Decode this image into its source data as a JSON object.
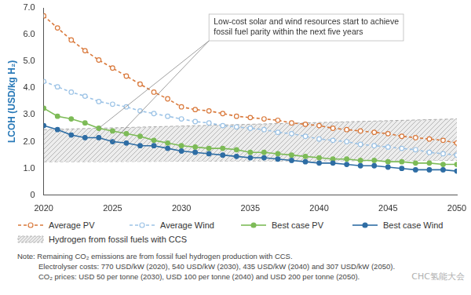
{
  "chart_data": {
    "type": "line",
    "y_label": "LCOH (USD/kg H₂)",
    "x": [
      2020,
      2021,
      2022,
      2023,
      2024,
      2025,
      2026,
      2027,
      2028,
      2029,
      2030,
      2031,
      2032,
      2033,
      2034,
      2035,
      2036,
      2037,
      2038,
      2039,
      2040,
      2041,
      2042,
      2043,
      2044,
      2045,
      2046,
      2047,
      2048,
      2049,
      2050
    ],
    "series": [
      {
        "name": "Average PV",
        "color": "#d9783a",
        "line_style": "dashed",
        "marker": "open_circle",
        "values": [
          6.7,
          6.25,
          5.8,
          5.4,
          5.05,
          4.75,
          4.45,
          4.15,
          3.85,
          3.6,
          3.3,
          3.2,
          3.15,
          3.05,
          2.95,
          2.9,
          2.85,
          2.8,
          2.7,
          2.65,
          2.6,
          2.5,
          2.45,
          2.4,
          2.35,
          2.3,
          2.2,
          2.15,
          2.1,
          2.05,
          1.95
        ]
      },
      {
        "name": "Average Wind",
        "color": "#9cc3e6",
        "line_style": "dashed",
        "marker": "open_circle",
        "values": [
          4.25,
          4.05,
          3.85,
          3.7,
          3.5,
          3.4,
          3.3,
          3.15,
          3.05,
          2.95,
          2.85,
          2.75,
          2.7,
          2.6,
          2.55,
          2.5,
          2.45,
          2.35,
          2.3,
          2.2,
          2.1,
          2.05,
          2.0,
          1.9,
          1.85,
          1.8,
          1.75,
          1.7,
          1.6,
          1.55,
          1.5
        ]
      },
      {
        "name": "Best case PV",
        "color": "#7dbb57",
        "line_style": "solid",
        "marker": "circle",
        "values": [
          3.25,
          2.95,
          2.85,
          2.7,
          2.5,
          2.4,
          2.3,
          2.2,
          2.05,
          1.95,
          1.85,
          1.8,
          1.75,
          1.75,
          1.7,
          1.6,
          1.6,
          1.55,
          1.5,
          1.45,
          1.4,
          1.35,
          1.35,
          1.3,
          1.3,
          1.25,
          1.25,
          1.2,
          1.2,
          1.15,
          1.15
        ]
      },
      {
        "name": "Best case Wind",
        "color": "#2e6da4",
        "line_style": "solid",
        "marker": "circle",
        "values": [
          2.6,
          2.45,
          2.25,
          2.15,
          2.15,
          2.0,
          1.95,
          1.85,
          1.85,
          1.75,
          1.65,
          1.6,
          1.55,
          1.5,
          1.45,
          1.4,
          1.4,
          1.35,
          1.3,
          1.25,
          1.2,
          1.2,
          1.15,
          1.1,
          1.1,
          1.05,
          1.0,
          0.95,
          0.95,
          0.95,
          0.9
        ]
      }
    ],
    "band": {
      "name": "Hydrogen from fossil fuels with CCS",
      "color": "#aaaaaa",
      "line_style": "dashed",
      "x": [
        2020,
        2050
      ],
      "lower": [
        1.25,
        1.3
      ],
      "upper": [
        2.45,
        2.85
      ]
    },
    "annotation": {
      "text": [
        "Low-cost solar and wind resources start to achieve",
        "fossil fuel parity within the next five years"
      ],
      "targets": [
        {
          "x": 2024,
          "y": 2.5
        },
        {
          "x": 2025,
          "y": 2.0
        }
      ]
    },
    "xlim": [
      2020,
      2050
    ],
    "xticks": [
      2020,
      2025,
      2030,
      2035,
      2040,
      2045,
      2050
    ],
    "ylim": [
      0,
      7
    ],
    "yticks": [
      0,
      {
        "value": 1,
        "label": "1.0"
      },
      {
        "value": 2,
        "label": "2.0"
      },
      {
        "value": 3,
        "label": "3.0"
      },
      {
        "value": 4,
        "label": "4.0"
      },
      {
        "value": 5,
        "label": "5.0"
      },
      {
        "value": 6,
        "label": "6.0"
      },
      {
        "value": 7,
        "label": "7.0"
      }
    ],
    "grid": false,
    "notes": [
      "Note: Remaining CO₂ emissions are from fossil fuel hydrogen production with CCS.",
      "Electrolyser costs: 770 USD/kW (2020), 540 USD/kW (2030), 435 USD/kW (2040) and 307 USD/kW (2050).",
      "CO₂ prices: USD 50 per tonne (2030), USD 100 per tonne (2040) and USD 200 per tonne (2050)."
    ],
    "watermark": "CHC氢能大会"
  }
}
